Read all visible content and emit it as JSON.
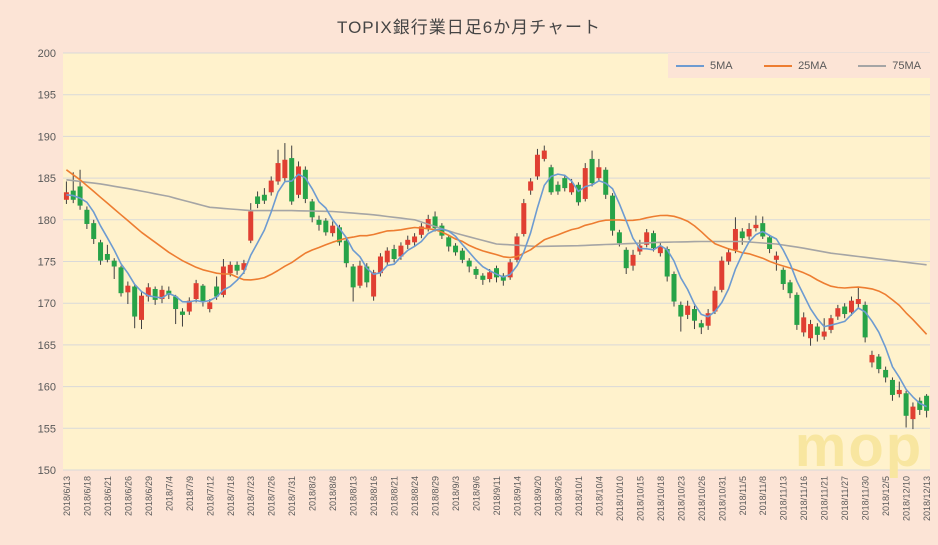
{
  "chart": {
    "title": "TOPIX銀行業日足6か月チャート",
    "watermark": "mop",
    "legend": [
      {
        "label": "5MA",
        "color": "#6D9BD1"
      },
      {
        "label": "25MA",
        "color": "#ED7D31"
      },
      {
        "label": "75MA",
        "color": "#A5A5A5"
      }
    ],
    "colors": {
      "outer_background": "#FCE4D6",
      "plot_background": "#FFF2CC",
      "gridline": "#D9D9D9",
      "axis_label": "#595959",
      "title_text": "#454545",
      "up_candle": "#E03F32",
      "down_candle": "#27A348",
      "wick": "#404040",
      "watermark": "#F8E6A0"
    }
  },
  "chart_data": {
    "type": "candlestick",
    "title": "TOPIX銀行業日足6か月チャート",
    "ylim": [
      150,
      200
    ],
    "ytick_step": 5,
    "x_label_every": 3,
    "grid": true,
    "legend_position": "top-right",
    "series_names": [
      "5MA",
      "25MA",
      "75MA"
    ],
    "dates": [
      "2018/6/13",
      "2018/6/14",
      "2018/6/15",
      "2018/6/18",
      "2018/6/19",
      "2018/6/20",
      "2018/6/21",
      "2018/6/22",
      "2018/6/25",
      "2018/6/26",
      "2018/6/27",
      "2018/6/28",
      "2018/6/29",
      "2018/7/2",
      "2018/7/3",
      "2018/7/4",
      "2018/7/5",
      "2018/7/6",
      "2018/7/9",
      "2018/7/10",
      "2018/7/11",
      "2018/7/12",
      "2018/7/13",
      "2018/7/17",
      "2018/7/18",
      "2018/7/19",
      "2018/7/20",
      "2018/7/23",
      "2018/7/24",
      "2018/7/25",
      "2018/7/26",
      "2018/7/27",
      "2018/7/30",
      "2018/7/31",
      "2018/8/1",
      "2018/8/2",
      "2018/8/3",
      "2018/8/6",
      "2018/8/7",
      "2018/8/8",
      "2018/8/9",
      "2018/8/10",
      "2018/8/13",
      "2018/8/14",
      "2018/8/15",
      "2018/8/16",
      "2018/8/17",
      "2018/8/20",
      "2018/8/21",
      "2018/8/22",
      "2018/8/23",
      "2018/8/24",
      "2018/8/27",
      "2018/8/28",
      "2018/8/29",
      "2018/8/30",
      "2018/8/31",
      "2018/9/3",
      "2018/9/4",
      "2018/9/5",
      "2018/9/6",
      "2018/9/7",
      "2018/9/10",
      "2018/9/11",
      "2018/9/12",
      "2018/9/13",
      "2018/9/14",
      "2018/9/18",
      "2018/9/19",
      "2018/9/20",
      "2018/9/21",
      "2018/9/25",
      "2018/9/26",
      "2018/9/27",
      "2018/9/28",
      "2018/10/1",
      "2018/10/2",
      "2018/10/3",
      "2018/10/4",
      "2018/10/5",
      "2018/10/9",
      "2018/10/10",
      "2018/10/11",
      "2018/10/12",
      "2018/10/15",
      "2018/10/16",
      "2018/10/17",
      "2018/10/18",
      "2018/10/19",
      "2018/10/22",
      "2018/10/23",
      "2018/10/24",
      "2018/10/25",
      "2018/10/26",
      "2018/10/29",
      "2018/10/30",
      "2018/10/31",
      "2018/11/1",
      "2018/11/2",
      "2018/11/5",
      "2018/11/6",
      "2018/11/7",
      "2018/11/8",
      "2018/11/9",
      "2018/11/12",
      "2018/11/13",
      "2018/11/14",
      "2018/11/15",
      "2018/11/16",
      "2018/11/19",
      "2018/11/20",
      "2018/11/21",
      "2018/11/22",
      "2018/11/26",
      "2018/11/27",
      "2018/11/28",
      "2018/11/29",
      "2018/11/30",
      "2018/12/3",
      "2018/12/4",
      "2018/12/5",
      "2018/12/6",
      "2018/12/7",
      "2018/12/10",
      "2018/12/11",
      "2018/12/12",
      "2018/12/13"
    ],
    "ohlc": [
      [
        182.4,
        184.6,
        181.9,
        183.3
      ],
      [
        183.5,
        185.7,
        182.0,
        182.4
      ],
      [
        184.0,
        186.0,
        181.2,
        181.7
      ],
      [
        181.2,
        181.6,
        178.9,
        179.5
      ],
      [
        179.6,
        180.0,
        177.1,
        177.7
      ],
      [
        177.3,
        177.6,
        174.6,
        175.1
      ],
      [
        175.9,
        177.0,
        174.9,
        175.2
      ],
      [
        175.1,
        175.4,
        172.9,
        174.4
      ],
      [
        174.3,
        174.5,
        170.8,
        171.2
      ],
      [
        171.3,
        172.6,
        169.9,
        172.1
      ],
      [
        172.0,
        172.2,
        167.0,
        168.4
      ],
      [
        168.0,
        171.3,
        166.9,
        170.9
      ],
      [
        170.8,
        172.4,
        170.2,
        171.9
      ],
      [
        171.7,
        172.0,
        169.8,
        170.4
      ],
      [
        170.5,
        172.1,
        170.0,
        171.6
      ],
      [
        171.5,
        172.0,
        170.5,
        171.0
      ],
      [
        170.8,
        171.0,
        167.5,
        169.3
      ],
      [
        169.0,
        169.4,
        167.2,
        168.6
      ],
      [
        169.0,
        170.7,
        168.6,
        170.3
      ],
      [
        170.5,
        172.8,
        170.1,
        172.4
      ],
      [
        172.1,
        172.3,
        169.6,
        170.2
      ],
      [
        169.3,
        170.5,
        168.9,
        170.1
      ],
      [
        172.0,
        173.2,
        170.4,
        170.8
      ],
      [
        171.0,
        175.3,
        170.7,
        174.4
      ],
      [
        173.6,
        175.0,
        173.2,
        174.6
      ],
      [
        174.6,
        175.0,
        173.4,
        173.9
      ],
      [
        174.0,
        175.2,
        173.5,
        174.8
      ],
      [
        177.5,
        182.0,
        177.2,
        181.0
      ],
      [
        182.8,
        183.4,
        181.4,
        181.9
      ],
      [
        183.0,
        183.8,
        181.9,
        182.3
      ],
      [
        183.3,
        185.2,
        182.9,
        184.7
      ],
      [
        184.6,
        188.4,
        184.2,
        186.8
      ],
      [
        185.0,
        189.2,
        184.6,
        187.2
      ],
      [
        187.4,
        188.9,
        181.8,
        182.2
      ],
      [
        183.0,
        187.0,
        182.6,
        186.4
      ],
      [
        186.0,
        186.4,
        182.0,
        182.5
      ],
      [
        182.2,
        182.5,
        179.7,
        180.3
      ],
      [
        180.0,
        180.5,
        178.7,
        179.4
      ],
      [
        179.9,
        180.2,
        178.1,
        178.5
      ],
      [
        178.4,
        179.8,
        178.0,
        179.3
      ],
      [
        179.1,
        179.4,
        176.9,
        177.3
      ],
      [
        177.5,
        177.8,
        174.3,
        174.8
      ],
      [
        174.4,
        174.7,
        170.2,
        171.9
      ],
      [
        172.1,
        175.1,
        171.8,
        174.5
      ],
      [
        174.4,
        174.8,
        171.9,
        172.5
      ],
      [
        170.8,
        174.0,
        170.3,
        173.7
      ],
      [
        173.6,
        176.0,
        173.2,
        175.6
      ],
      [
        174.9,
        176.7,
        174.6,
        176.3
      ],
      [
        176.5,
        177.0,
        174.9,
        175.3
      ],
      [
        175.6,
        177.3,
        175.2,
        176.9
      ],
      [
        177.0,
        178.1,
        176.5,
        177.6
      ],
      [
        177.3,
        178.4,
        176.9,
        178.0
      ],
      [
        178.2,
        179.6,
        177.8,
        179.2
      ],
      [
        179.0,
        180.6,
        178.6,
        180.1
      ],
      [
        180.4,
        181.0,
        178.6,
        179.0
      ],
      [
        179.3,
        179.6,
        177.7,
        178.1
      ],
      [
        177.9,
        178.2,
        176.2,
        176.8
      ],
      [
        176.9,
        177.2,
        175.7,
        176.1
      ],
      [
        176.3,
        176.6,
        174.8,
        175.2
      ],
      [
        175.1,
        175.4,
        173.7,
        174.4
      ],
      [
        174.1,
        174.4,
        172.9,
        173.4
      ],
      [
        173.3,
        173.6,
        172.2,
        172.8
      ],
      [
        172.9,
        174.1,
        172.5,
        173.7
      ],
      [
        174.2,
        174.5,
        172.5,
        173.1
      ],
      [
        173.3,
        173.6,
        172.1,
        172.7
      ],
      [
        173.1,
        175.3,
        172.8,
        174.9
      ],
      [
        175.2,
        178.4,
        174.9,
        178.0
      ],
      [
        178.3,
        182.5,
        178.0,
        182.0
      ],
      [
        183.5,
        185.0,
        183.0,
        184.6
      ],
      [
        185.2,
        188.5,
        184.8,
        187.8
      ],
      [
        187.3,
        188.9,
        187.0,
        188.3
      ],
      [
        186.3,
        186.6,
        183.0,
        183.3
      ],
      [
        184.2,
        184.6,
        183.0,
        183.4
      ],
      [
        185.0,
        185.4,
        183.4,
        183.8
      ],
      [
        183.3,
        184.9,
        183.0,
        184.4
      ],
      [
        184.2,
        184.5,
        181.7,
        182.1
      ],
      [
        182.5,
        186.8,
        182.2,
        186.2
      ],
      [
        187.3,
        188.3,
        184.0,
        184.4
      ],
      [
        185.0,
        187.3,
        184.6,
        186.3
      ],
      [
        186.0,
        186.3,
        182.5,
        183.0
      ],
      [
        182.9,
        183.2,
        178.1,
        178.7
      ],
      [
        178.5,
        178.8,
        176.8,
        177.2
      ],
      [
        176.4,
        176.7,
        173.5,
        174.2
      ],
      [
        174.5,
        176.4,
        173.9,
        175.8
      ],
      [
        176.2,
        177.6,
        175.8,
        176.9
      ],
      [
        177.0,
        178.9,
        176.7,
        178.5
      ],
      [
        178.4,
        178.7,
        176.2,
        176.6
      ],
      [
        176.0,
        177.2,
        175.6,
        176.8
      ],
      [
        176.5,
        176.8,
        172.6,
        173.2
      ],
      [
        173.5,
        173.8,
        169.6,
        170.2
      ],
      [
        169.8,
        170.2,
        166.6,
        168.4
      ],
      [
        168.6,
        170.3,
        168.1,
        169.7
      ],
      [
        169.3,
        169.7,
        166.9,
        167.9
      ],
      [
        167.6,
        168.0,
        166.3,
        167.1
      ],
      [
        167.3,
        169.3,
        166.8,
        168.8
      ],
      [
        169.0,
        172.0,
        168.7,
        171.5
      ],
      [
        171.6,
        175.6,
        171.3,
        175.1
      ],
      [
        175.0,
        176.6,
        174.6,
        176.1
      ],
      [
        176.4,
        180.3,
        176.0,
        178.9
      ],
      [
        178.6,
        179.0,
        177.0,
        177.8
      ],
      [
        178.0,
        179.6,
        177.6,
        178.9
      ],
      [
        179.0,
        180.5,
        178.6,
        179.4
      ],
      [
        179.6,
        180.4,
        177.7,
        178.0
      ],
      [
        177.9,
        178.2,
        176.0,
        176.5
      ],
      [
        175.2,
        176.2,
        173.9,
        175.7
      ],
      [
        174.0,
        174.3,
        171.6,
        172.3
      ],
      [
        172.5,
        172.8,
        170.6,
        171.2
      ],
      [
        171.0,
        171.3,
        166.8,
        167.4
      ],
      [
        166.5,
        168.9,
        166.0,
        168.3
      ],
      [
        165.8,
        168.0,
        164.9,
        167.5
      ],
      [
        167.2,
        167.6,
        165.4,
        166.2
      ],
      [
        166.0,
        168.2,
        165.6,
        166.6
      ],
      [
        166.8,
        168.6,
        166.4,
        168.2
      ],
      [
        168.4,
        169.8,
        168.0,
        169.4
      ],
      [
        169.6,
        170.0,
        168.2,
        168.7
      ],
      [
        168.9,
        170.8,
        168.5,
        170.3
      ],
      [
        169.9,
        171.9,
        169.4,
        170.5
      ],
      [
        169.8,
        170.2,
        165.3,
        165.9
      ],
      [
        162.9,
        164.3,
        162.3,
        163.8
      ],
      [
        163.6,
        163.9,
        161.6,
        162.1
      ],
      [
        162.0,
        162.4,
        160.5,
        161.1
      ],
      [
        160.8,
        161.1,
        158.3,
        159.0
      ],
      [
        159.1,
        160.6,
        158.7,
        159.6
      ],
      [
        159.2,
        159.5,
        155.1,
        156.5
      ],
      [
        156.1,
        158.1,
        154.9,
        157.6
      ],
      [
        158.3,
        158.7,
        156.6,
        157.2
      ],
      [
        158.9,
        159.1,
        156.3,
        157.1
      ]
    ],
    "ma5_seed": [
      183.0,
      182.9,
      182.6,
      182.1
    ],
    "ma25_seed": [
      186.0,
      185.4,
      184.8,
      184.1,
      183.4,
      182.7,
      182.0,
      181.3,
      180.6,
      179.9,
      179.2,
      178.5,
      177.9,
      177.3,
      176.7,
      176.1,
      175.6,
      175.1,
      174.7,
      174.3,
      174.0,
      173.8,
      173.6,
      173.5
    ],
    "ma75_waypoints": [
      [
        0,
        184.8
      ],
      [
        5,
        184.3
      ],
      [
        10,
        183.6
      ],
      [
        15,
        182.8
      ],
      [
        21,
        181.5
      ],
      [
        27,
        181.1
      ],
      [
        33,
        181.1
      ],
      [
        39,
        181.0
      ],
      [
        45,
        180.6
      ],
      [
        51,
        180.0
      ],
      [
        57,
        178.4
      ],
      [
        63,
        177.1
      ],
      [
        69,
        176.8
      ],
      [
        75,
        176.9
      ],
      [
        81,
        177.1
      ],
      [
        87,
        177.3
      ],
      [
        93,
        177.4
      ],
      [
        99,
        177.4
      ],
      [
        104,
        177.1
      ],
      [
        108,
        176.6
      ],
      [
        112,
        176.0
      ],
      [
        116,
        175.6
      ],
      [
        120,
        175.2
      ],
      [
        126,
        174.6
      ]
    ]
  }
}
